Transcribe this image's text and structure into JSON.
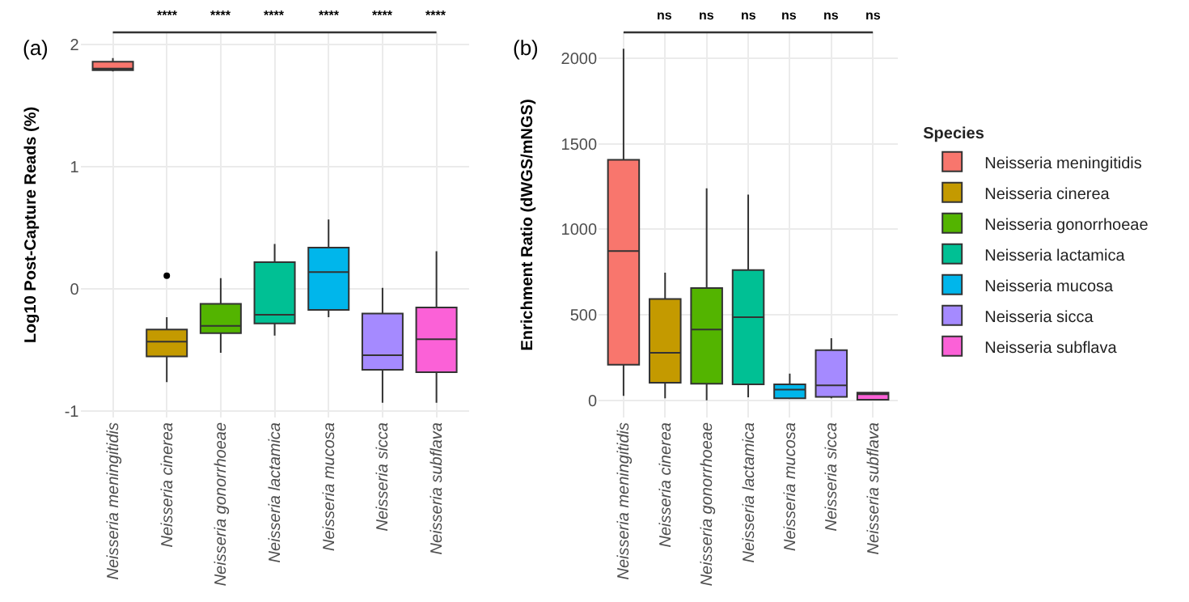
{
  "chart_data": [
    {
      "type": "box",
      "ylabel": "Log10 Post-Capture Reads (%)",
      "categories": [
        "Neisseria meningitidis",
        "Neisseria cinerea",
        "Neisseria gonorrhoeae",
        "Neisseria lactamica",
        "Neisseria mucosa",
        "Neisseria sicca",
        "Neisseria subflava"
      ],
      "colors": [
        "#f8766d",
        "#c49a00",
        "#53b400",
        "#00c094",
        "#00b6eb",
        "#a58aff",
        "#fb61d7"
      ],
      "boxes": [
        {
          "low": 1.78,
          "q1": 1.79,
          "median": 1.8,
          "q3": 1.86,
          "high": 1.89
        },
        {
          "low": -0.76,
          "q1": -0.55,
          "median": -0.43,
          "q3": -0.33,
          "high": -0.23,
          "outliers": [
            0.11
          ]
        },
        {
          "low": -0.52,
          "q1": -0.36,
          "median": -0.3,
          "q3": -0.12,
          "high": 0.09
        },
        {
          "low": -0.38,
          "q1": -0.28,
          "median": -0.21,
          "q3": 0.22,
          "high": 0.37
        },
        {
          "low": -0.23,
          "q1": -0.17,
          "median": 0.14,
          "q3": 0.34,
          "high": 0.57
        },
        {
          "low": -0.93,
          "q1": -0.66,
          "median": -0.54,
          "q3": -0.2,
          "high": 0.01
        },
        {
          "low": -0.93,
          "q1": -0.68,
          "median": -0.41,
          "q3": -0.15,
          "high": 0.31
        }
      ],
      "ylim": [
        -1.05,
        2.1
      ],
      "yticks": [
        -1,
        0,
        1,
        2
      ],
      "grid": true,
      "annotations": [
        "(a)",
        "****",
        "****",
        "****",
        "****",
        "****",
        "****"
      ]
    },
    {
      "type": "box",
      "ylabel": "Enrichment Ratio (dWGS/mNGS)",
      "legend_title": "Species",
      "categories": [
        "Neisseria meningitidis",
        "Neisseria cinerea",
        "Neisseria gonorrhoeae",
        "Neisseria lactamica",
        "Neisseria mucosa",
        "Neisseria sicca",
        "Neisseria subflava"
      ],
      "series": [
        {
          "name": "Neisseria meningitidis",
          "color": "#f8766d",
          "boxes": [
            {
              "low": 27,
              "q1": 208,
              "median": 873,
              "q3": 1405,
              "high": 2054
            },
            null,
            null,
            null,
            null,
            null,
            null
          ]
        },
        {
          "name": "Neisseria cinerea",
          "color": "#c49a00",
          "boxes": [
            null,
            {
              "low": 12,
              "q1": 103,
              "median": 278,
              "q3": 592,
              "high": 746
            },
            null,
            null,
            null,
            null,
            null
          ]
        },
        {
          "name": "Neisseria gonorrhoeae",
          "color": "#53b400",
          "boxes": [
            null,
            null,
            {
              "low": 0,
              "q1": 97,
              "median": 414,
              "q3": 656,
              "high": 1239
            },
            null,
            null,
            null,
            null
          ]
        },
        {
          "name": "Neisseria lactamica",
          "color": "#00c094",
          "boxes": [
            null,
            null,
            null,
            {
              "low": 18,
              "q1": 94,
              "median": 486,
              "q3": 761,
              "high": 1202
            },
            null,
            null,
            null
          ]
        },
        {
          "name": "Neisseria mucosa",
          "color": "#00b6eb",
          "boxes": [
            null,
            null,
            null,
            null,
            {
              "low": 8,
              "q1": 12,
              "median": 63,
              "q3": 94,
              "high": 157
            },
            null,
            null
          ]
        },
        {
          "name": "Neisseria sicca",
          "color": "#a58aff",
          "boxes": [
            null,
            null,
            null,
            null,
            null,
            {
              "low": 12,
              "q1": 21,
              "median": 88,
              "q3": 293,
              "high": 363
            },
            null
          ]
        },
        {
          "name": "Neisseria subflava",
          "color": "#fb61d7",
          "boxes": [
            null,
            null,
            null,
            null,
            null,
            null,
            {
              "low": 2,
              "q1": 4,
              "median": 36,
              "q3": 45,
              "high": 45
            }
          ]
        }
      ],
      "ylim": [
        -100,
        2150
      ],
      "yticks": [
        0,
        500,
        1000,
        1500,
        2000
      ],
      "grid": true,
      "legend": "right",
      "annotations": [
        "(b)",
        "ns",
        "ns",
        "ns",
        "ns",
        "ns",
        "ns"
      ]
    }
  ]
}
